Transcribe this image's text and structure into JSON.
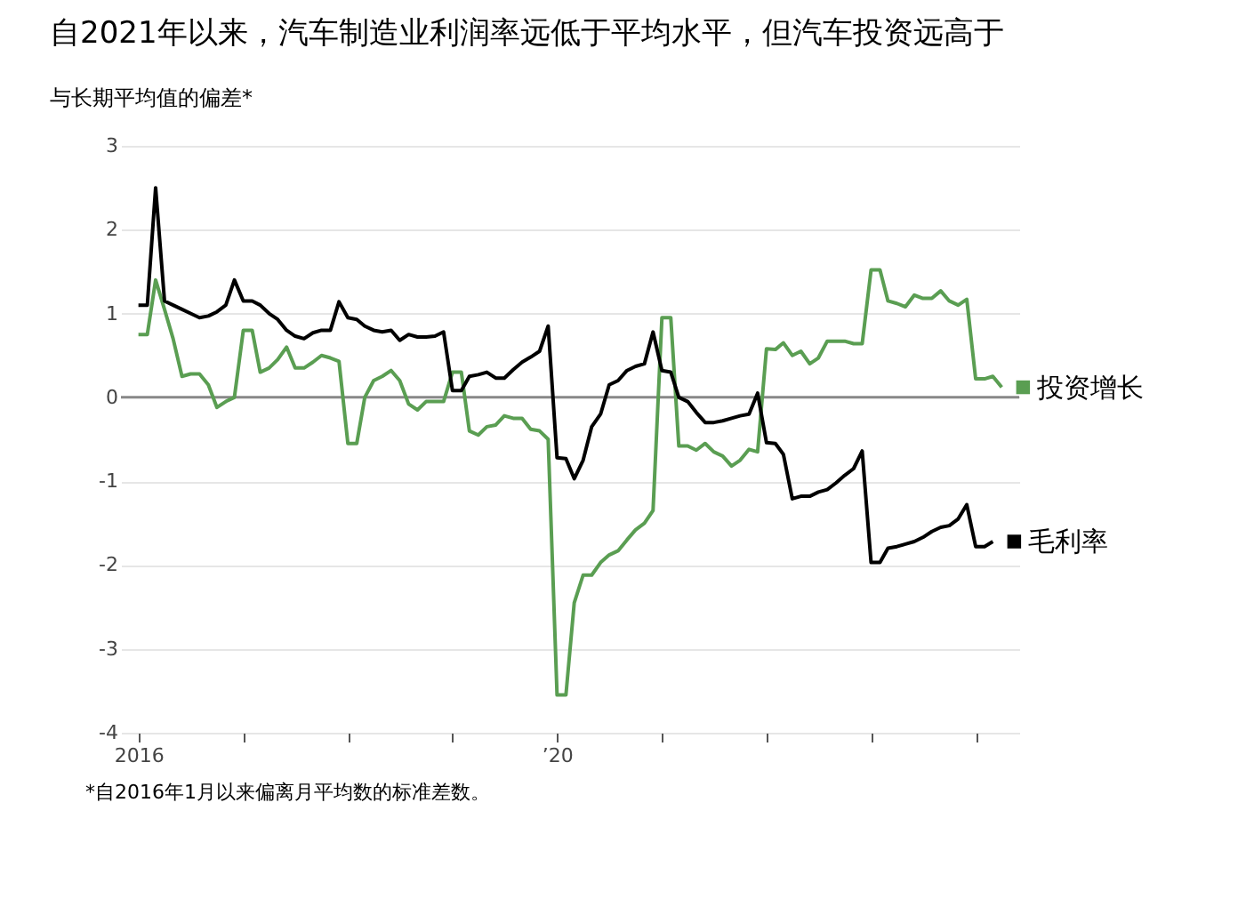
{
  "chart_data": {
    "type": "line",
    "title": "自2021年以来，汽车制造业利润率远低于平均水平，但汽车投资远高于",
    "subtitle": "与长期平均值的偏差*",
    "annotations": [
      "*自2016年1月以来偏离月平均数的标准差数。"
    ],
    "x": [
      "2016-01",
      "2016-02",
      "2016-03",
      "2016-04",
      "2016-05",
      "2016-06",
      "2016-07",
      "2016-08",
      "2016-09",
      "2016-10",
      "2016-11",
      "2016-12",
      "2017-01",
      "2017-02",
      "2017-03",
      "2017-04",
      "2017-05",
      "2017-06",
      "2017-07",
      "2017-08",
      "2017-09",
      "2017-10",
      "2017-11",
      "2017-12",
      "2018-01",
      "2018-02",
      "2018-03",
      "2018-04",
      "2018-05",
      "2018-06",
      "2018-07",
      "2018-08",
      "2018-09",
      "2018-10",
      "2018-11",
      "2018-12",
      "2019-01",
      "2019-02",
      "2019-03",
      "2019-04",
      "2019-05",
      "2019-06",
      "2019-07",
      "2019-08",
      "2019-09",
      "2019-10",
      "2019-11",
      "2019-12",
      "2020-01",
      "2020-02",
      "2020-03",
      "2020-04",
      "2020-05",
      "2020-06",
      "2020-07",
      "2020-08",
      "2020-09",
      "2020-10",
      "2020-11",
      "2020-12",
      "2021-01",
      "2021-02",
      "2021-03",
      "2021-04",
      "2021-05",
      "2021-06",
      "2021-07",
      "2021-08",
      "2021-09",
      "2021-10",
      "2021-11",
      "2021-12",
      "2022-01",
      "2022-02",
      "2022-03",
      "2022-04",
      "2022-05",
      "2022-06",
      "2022-07",
      "2022-08",
      "2022-09",
      "2022-10",
      "2022-11",
      "2022-12",
      "2023-01",
      "2023-02",
      "2023-03",
      "2023-04",
      "2023-05",
      "2023-06",
      "2023-07",
      "2023-08",
      "2023-09",
      "2023-10",
      "2023-11",
      "2023-12",
      "2024-01",
      "2024-02",
      "2024-03",
      "2024-04"
    ],
    "series": [
      {
        "name": "投资增长",
        "color": "#5a9e52",
        "values": [
          0.75,
          0.75,
          1.4,
          1.05,
          0.7,
          0.25,
          0.28,
          0.28,
          0.15,
          -0.12,
          -0.05,
          0.0,
          0.8,
          0.8,
          0.3,
          0.35,
          0.45,
          0.6,
          0.35,
          0.35,
          0.42,
          0.5,
          0.47,
          0.43,
          -0.55,
          -0.55,
          0.0,
          0.2,
          0.25,
          0.32,
          0.2,
          -0.08,
          -0.15,
          -0.05,
          -0.05,
          -0.05,
          0.3,
          0.3,
          -0.4,
          -0.45,
          -0.35,
          -0.33,
          -0.22,
          -0.25,
          -0.25,
          -0.38,
          -0.4,
          -0.5,
          -3.55,
          -3.55,
          -2.45,
          -2.12,
          -2.12,
          -1.97,
          -1.88,
          -1.83,
          -1.7,
          -1.58,
          -1.5,
          -1.35,
          0.95,
          0.95,
          -0.58,
          -0.58,
          -0.63,
          -0.55,
          -0.65,
          -0.7,
          -0.82,
          -0.75,
          -0.62,
          -0.65,
          0.58,
          0.57,
          0.65,
          0.5,
          0.55,
          0.4,
          0.47,
          0.67,
          0.67,
          0.67,
          0.64,
          0.64,
          1.52,
          1.52,
          1.15,
          1.12,
          1.08,
          1.22,
          1.18,
          1.18,
          1.27,
          1.15,
          1.1,
          1.17,
          0.22,
          0.22,
          0.25,
          0.12
        ]
      },
      {
        "name": "毛利率",
        "color": "#000000",
        "values": [
          1.1,
          1.1,
          2.5,
          1.15,
          1.1,
          1.05,
          1.0,
          0.95,
          0.97,
          1.02,
          1.1,
          1.4,
          1.15,
          1.15,
          1.1,
          1.0,
          0.93,
          0.8,
          0.73,
          0.7,
          0.77,
          0.8,
          0.8,
          1.14,
          0.95,
          0.93,
          0.85,
          0.8,
          0.78,
          0.8,
          0.68,
          0.75,
          0.72,
          0.72,
          0.73,
          0.78,
          0.08,
          0.08,
          0.25,
          0.27,
          0.3,
          0.23,
          0.23,
          0.33,
          0.42,
          0.48,
          0.55,
          0.85,
          -0.72,
          -0.73,
          -0.97,
          -0.75,
          -0.35,
          -0.2,
          0.15,
          0.2,
          0.32,
          0.37,
          0.4,
          0.78,
          0.32,
          0.3,
          0.0,
          -0.05,
          -0.18,
          -0.3,
          -0.3,
          -0.28,
          -0.25,
          -0.22,
          -0.2,
          0.05,
          -0.54,
          -0.55,
          -0.68,
          -1.21,
          -1.18,
          -1.18,
          -1.13,
          -1.1,
          -1.02,
          -0.93,
          -0.85,
          -0.64,
          -1.97,
          -1.97,
          -1.8,
          -1.78,
          -1.75,
          -1.72,
          -1.67,
          -1.6,
          -1.55,
          -1.53,
          -1.45,
          -1.28,
          -1.78,
          -1.78,
          -1.72,
          null
        ]
      }
    ],
    "xlim": [
      "2015-11",
      "2024-06"
    ],
    "xticks": [
      {
        "value": "2016-01",
        "label": "2016"
      },
      {
        "value": "2017-01",
        "label": null
      },
      {
        "value": "2018-01",
        "label": null
      },
      {
        "value": "2019-01",
        "label": null
      },
      {
        "value": "2020-01",
        "label": "’20"
      },
      {
        "value": "2021-01",
        "label": null
      },
      {
        "value": "2022-01",
        "label": null
      },
      {
        "value": "2023-01",
        "label": null
      },
      {
        "value": "2024-01",
        "label": null
      }
    ],
    "ylim": [
      -4,
      3
    ],
    "yticks": [
      -4,
      -3,
      -2,
      -1,
      0,
      1,
      2,
      3
    ],
    "ref_lines": [
      {
        "axis": "y",
        "value": 0,
        "color": "#888888"
      }
    ],
    "grid": "y",
    "legend": "right",
    "marker": "none",
    "line_style": "solid"
  }
}
